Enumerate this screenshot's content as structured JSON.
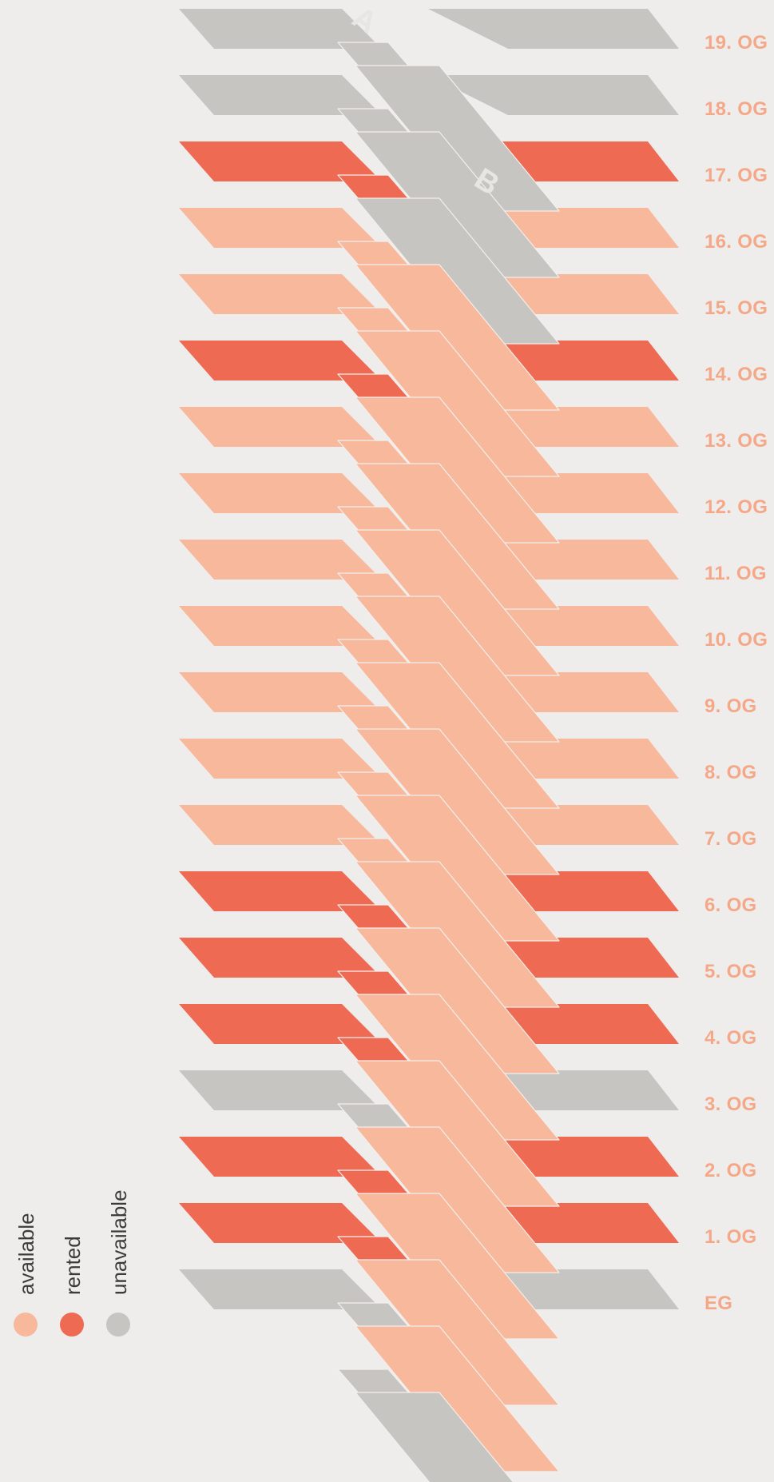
{
  "colors": {
    "available": "#f8b89c",
    "rented": "#ef6a53",
    "unavailable": "#c6c5c1",
    "label": "#f4a888",
    "background": "#efedec"
  },
  "building_labels": {
    "a": "A",
    "b": "B"
  },
  "legend": [
    {
      "key": "available",
      "label": "available"
    },
    {
      "key": "rented",
      "label": "rented"
    },
    {
      "key": "unavailable",
      "label": "unavailable"
    }
  ],
  "floors": [
    {
      "label": "19. OG",
      "wings": "unavailable",
      "block_a": "unavailable",
      "block_b": "none"
    },
    {
      "label": "18. OG",
      "wings": "unavailable",
      "block_a": "unavailable",
      "block_b": "unavailable"
    },
    {
      "label": "17. OG",
      "wings": "rented",
      "block_a": "rented",
      "block_b": "unavailable"
    },
    {
      "label": "16. OG",
      "wings": "available",
      "block_a": "available",
      "block_b": "unavailable"
    },
    {
      "label": "15. OG",
      "wings": "available",
      "block_a": "available",
      "block_b": "available"
    },
    {
      "label": "14. OG",
      "wings": "rented",
      "block_a": "rented",
      "block_b": "available"
    },
    {
      "label": "13. OG",
      "wings": "available",
      "block_a": "available",
      "block_b": "available"
    },
    {
      "label": "12. OG",
      "wings": "available",
      "block_a": "available",
      "block_b": "available"
    },
    {
      "label": "11. OG",
      "wings": "available",
      "block_a": "available",
      "block_b": "available"
    },
    {
      "label": "10. OG",
      "wings": "available",
      "block_a": "available",
      "block_b": "available"
    },
    {
      "label": "9. OG",
      "wings": "available",
      "block_a": "available",
      "block_b": "available"
    },
    {
      "label": "8. OG",
      "wings": "available",
      "block_a": "available",
      "block_b": "available"
    },
    {
      "label": "7. OG",
      "wings": "available",
      "block_a": "available",
      "block_b": "available"
    },
    {
      "label": "6. OG",
      "wings": "rented",
      "block_a": "rented",
      "block_b": "available"
    },
    {
      "label": "5. OG",
      "wings": "rented",
      "block_a": "rented",
      "block_b": "available"
    },
    {
      "label": "4. OG",
      "wings": "rented",
      "block_a": "rented",
      "block_b": "available"
    },
    {
      "label": "3. OG",
      "wings": "unavailable",
      "block_a": "unavailable",
      "block_b": "available"
    },
    {
      "label": "2. OG",
      "wings": "rented",
      "block_a": "rented",
      "block_b": "available"
    },
    {
      "label": "1. OG",
      "wings": "rented",
      "block_a": "rented",
      "block_b": "available"
    },
    {
      "label": "EG",
      "wings": "unavailable",
      "block_a": "unavailable",
      "block_b": "available"
    },
    {
      "label": "",
      "wings": "none",
      "block_a": "unavailable",
      "block_b": "available"
    },
    {
      "label": "",
      "wings": "none",
      "block_a": "none",
      "block_b": "unavailable"
    }
  ]
}
